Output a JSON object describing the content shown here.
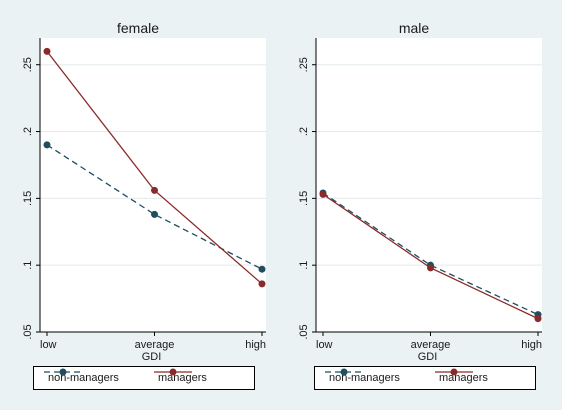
{
  "chart_data": [
    {
      "type": "line",
      "title": "female",
      "xlabel": "GDI",
      "ylabel": "",
      "categories": [
        "low",
        "average",
        "high"
      ],
      "ylim": [
        0.05,
        0.27
      ],
      "yticks": [
        ".05",
        ".1",
        ".15",
        ".2",
        ".25"
      ],
      "ytick_values": [
        0.05,
        0.1,
        0.15,
        0.2,
        0.25
      ],
      "series": [
        {
          "name": "non-managers",
          "values": [
            0.19,
            0.138,
            0.097
          ],
          "color": "#1f4e5e",
          "dash": true
        },
        {
          "name": "managers",
          "values": [
            0.26,
            0.156,
            0.086
          ],
          "color": "#8b2a2a",
          "dash": false
        }
      ],
      "legend": "bottom"
    },
    {
      "type": "line",
      "title": "male",
      "xlabel": "GDI",
      "ylabel": "",
      "categories": [
        "low",
        "average",
        "high"
      ],
      "ylim": [
        0.05,
        0.27
      ],
      "yticks": [
        ".05",
        ".1",
        ".15",
        ".2",
        ".25"
      ],
      "ytick_values": [
        0.05,
        0.1,
        0.15,
        0.2,
        0.25
      ],
      "series": [
        {
          "name": "non-managers",
          "values": [
            0.154,
            0.1,
            0.063
          ],
          "color": "#1f4e5e",
          "dash": true
        },
        {
          "name": "managers",
          "values": [
            0.153,
            0.098,
            0.06
          ],
          "color": "#8b2a2a",
          "dash": false
        }
      ],
      "legend": "bottom"
    }
  ]
}
